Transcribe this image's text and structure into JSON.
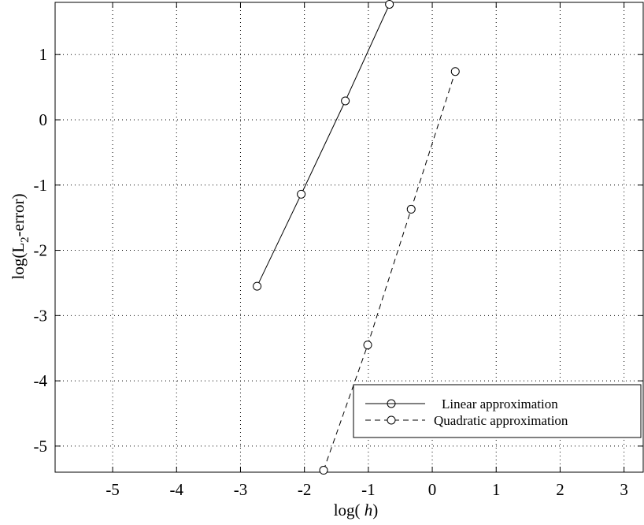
{
  "chart_data": {
    "type": "line",
    "title": "",
    "xlabel_prefix": "log( ",
    "xlabel_var": "h",
    "xlabel_suffix": ")",
    "ylabel_prefix": "log(L",
    "ylabel_sub": "2",
    "ylabel_suffix": "-error)",
    "xlim": [
      -5.9,
      3.3
    ],
    "ylim": [
      -5.4,
      1.8
    ],
    "grid": true,
    "legend_position": "bottom-right",
    "xticks": [
      -5,
      -4,
      -3,
      -2,
      -1,
      0,
      1,
      2,
      3
    ],
    "xtick_labels": [
      "-5",
      "-4",
      "-3",
      "-2",
      "-1",
      "0",
      "1",
      "2",
      "3"
    ],
    "yticks": [
      1,
      0,
      -1,
      -2,
      -3,
      -4,
      -5
    ],
    "ytick_labels": [
      "1",
      "0",
      "-1",
      "-2",
      "-3",
      "-4",
      "-5"
    ],
    "series": [
      {
        "name": "Linear approximation",
        "line_style": "solid",
        "marker": "circle",
        "x": [
          -2.74,
          -2.05,
          -1.36,
          -0.67
        ],
        "y": [
          -2.55,
          -1.14,
          0.29,
          1.77
        ]
      },
      {
        "name": "Quadratic approximation",
        "line_style": "dashed",
        "marker": "circle",
        "x": [
          -1.7,
          -1.01,
          -0.33,
          0.36
        ],
        "y": [
          -5.37,
          -3.45,
          -1.37,
          0.74
        ]
      }
    ]
  }
}
